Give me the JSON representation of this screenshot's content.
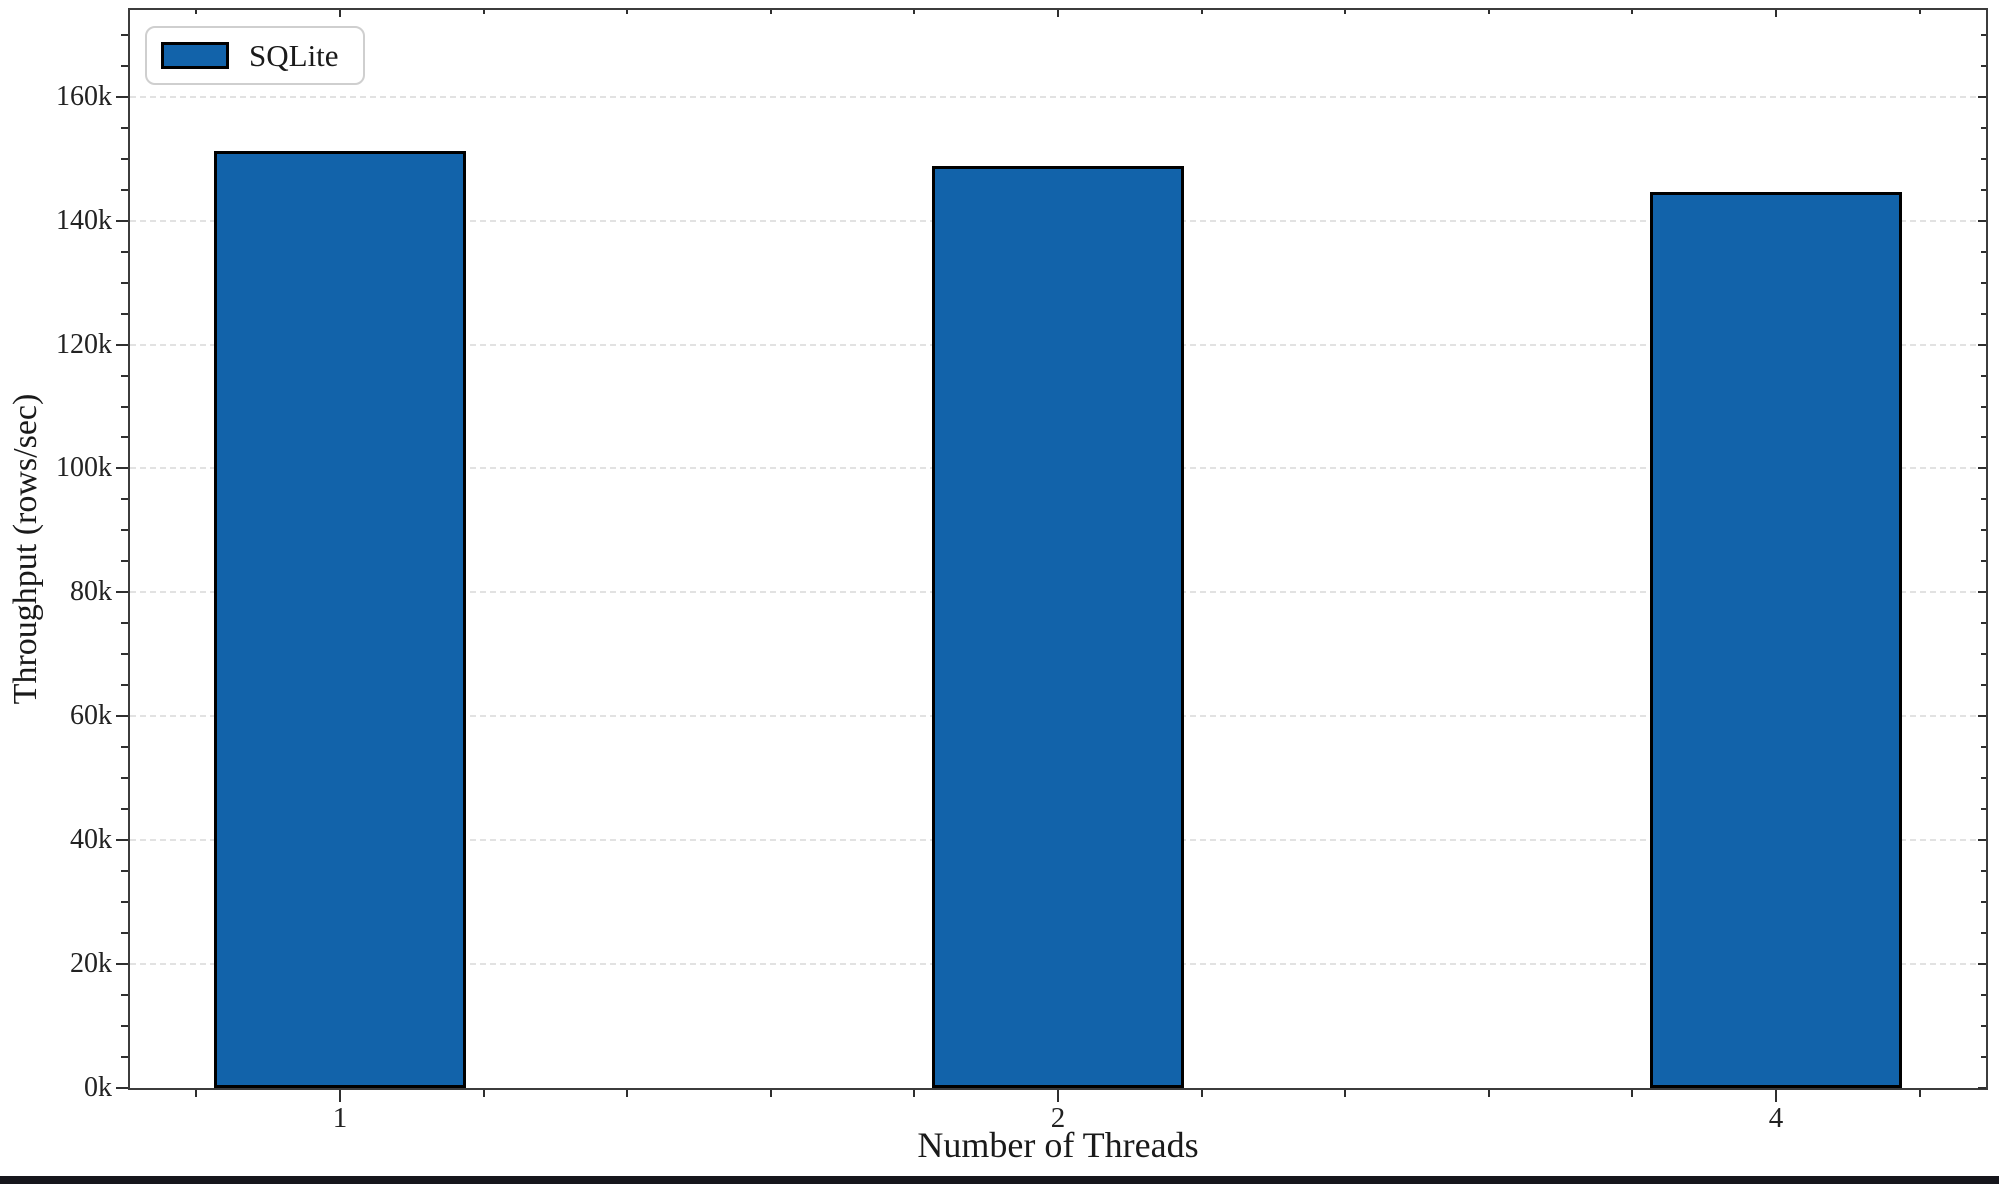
{
  "chart_data": {
    "type": "bar",
    "title": "",
    "xlabel": "Number of Threads",
    "ylabel": "Throughput (rows/sec)",
    "categories": [
      "1",
      "2",
      "4"
    ],
    "series": [
      {
        "name": "SQLite",
        "values": [
          151300,
          148800,
          144700
        ]
      }
    ],
    "ylim": [
      0,
      174000
    ],
    "ytick_values": [
      0,
      20000,
      40000,
      60000,
      80000,
      100000,
      120000,
      140000,
      160000
    ],
    "ytick_labels": [
      "0k",
      "20k",
      "40k",
      "60k",
      "80k",
      "100k",
      "120k",
      "140k",
      "160k"
    ],
    "ytick_minor_step": 5000,
    "xtick_minor_step_units": 0.2,
    "grid": "horizontal-major-dashed",
    "legend_position": "upper-left",
    "bar_color": "#1263aa",
    "bar_edge_color": "#000000",
    "bar_width_units": 0.35
  },
  "page": {
    "background_color": "#ffffff",
    "bottom_edge_bar_color": "#16161c"
  }
}
